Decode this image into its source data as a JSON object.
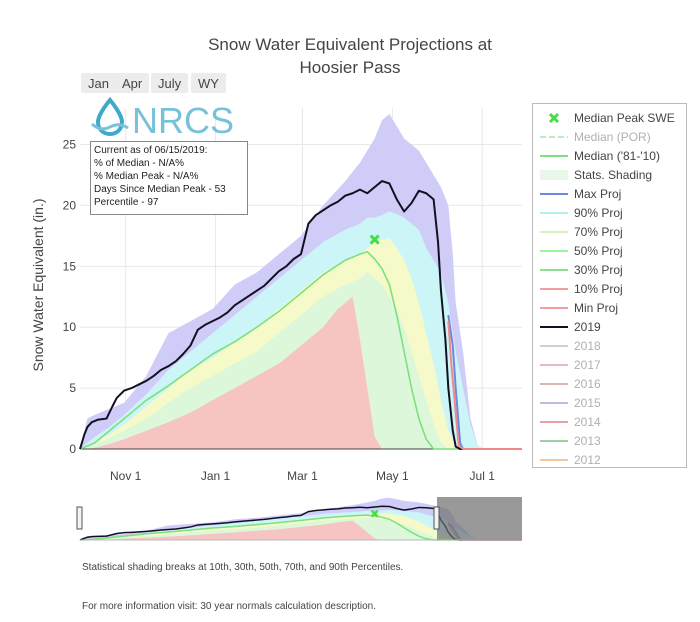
{
  "buttons": [
    "Jan",
    "Apr",
    "July",
    "WY"
  ],
  "info_box": {
    "lines": [
      "Current as of 06/15/2019:",
      "% of Median - N/A%",
      "% Median Peak - N/A%",
      "Days Since Median Peak - 53",
      "Percentile - 97"
    ]
  },
  "logo": {
    "text": "NRCS",
    "colors": {
      "drop": "#3fa9c9",
      "text": "#79c1d9"
    }
  },
  "footer": {
    "line1": "Statistical shading breaks at 10th, 30th, 50th, 70th, and 90th Percentiles.",
    "line2": "For more information visit: 30 year normals calculation description."
  },
  "legend": [
    {
      "label": "Median Peak SWE",
      "kind": "marker",
      "color": "#44dd44",
      "active": true
    },
    {
      "label": "Median (POR)",
      "kind": "dash",
      "color": "#b9f0b9",
      "active": false
    },
    {
      "label": "Median ('81-'10)",
      "kind": "line",
      "color": "#7ee07e",
      "active": true
    },
    {
      "label": "Stats. Shading",
      "kind": "fill",
      "color": "#e8f7e8",
      "active": true
    },
    {
      "label": "Max Proj",
      "kind": "line",
      "color": "#6f87e0",
      "active": true
    },
    {
      "label": "90% Proj",
      "kind": "line",
      "color": "#b3f0f0",
      "active": true
    },
    {
      "label": "70% Proj",
      "kind": "line",
      "color": "#d7f2c0",
      "active": true
    },
    {
      "label": "50% Proj",
      "kind": "line",
      "color": "#9ef29e",
      "active": true
    },
    {
      "label": "30% Proj",
      "kind": "line",
      "color": "#8ee08e",
      "active": true
    },
    {
      "label": "10% Proj",
      "kind": "line",
      "color": "#f0a0a0",
      "active": true
    },
    {
      "label": "Min Proj",
      "kind": "line",
      "color": "#eea0a0",
      "active": true
    },
    {
      "label": "2019",
      "kind": "line",
      "color": "#111122",
      "active": true
    },
    {
      "label": "2018",
      "kind": "line",
      "color": "#cfcfcf",
      "active": false
    },
    {
      "label": "2017",
      "kind": "line",
      "color": "#e8b8d0",
      "active": false
    },
    {
      "label": "2016",
      "kind": "line",
      "color": "#d8b8b0",
      "active": false
    },
    {
      "label": "2015",
      "kind": "line",
      "color": "#c8b8e0",
      "active": false
    },
    {
      "label": "2014",
      "kind": "line",
      "color": "#e8a0a0",
      "active": false
    },
    {
      "label": "2013",
      "kind": "line",
      "color": "#a0d0a0",
      "active": false
    },
    {
      "label": "2012",
      "kind": "line",
      "color": "#f4c89a",
      "active": false
    }
  ],
  "chart_data": {
    "type": "area",
    "title": "Snow Water Equivalent Projections at Hoosier Pass",
    "ylabel": "Snow Water Equivalent (in.)",
    "xlabel": "",
    "ylim": [
      0,
      28
    ],
    "yticks": [
      0,
      5,
      10,
      15,
      20,
      25
    ],
    "xlim": [
      0,
      300
    ],
    "xticks": [
      {
        "label": "Nov 1",
        "x": 31
      },
      {
        "label": "Jan 1",
        "x": 92
      },
      {
        "label": "Mar 1",
        "x": 151
      },
      {
        "label": "May 1",
        "x": 212
      },
      {
        "label": "Jul 1",
        "x": 273
      }
    ],
    "x_unit": "day of water year (Oct 1 = 0)",
    "median_peak_swe": {
      "x": 200,
      "y": 17.2
    },
    "bands": [
      {
        "name": "max",
        "color": "#cfcdf8",
        "x": [
          0,
          5,
          10,
          20,
          30,
          45,
          60,
          75,
          90,
          105,
          120,
          135,
          150,
          165,
          180,
          190,
          195,
          200,
          205,
          210,
          215,
          220,
          225,
          230,
          235,
          240,
          245,
          250,
          253,
          255,
          260,
          265,
          270,
          275,
          280,
          300
        ],
        "y": [
          0,
          2.5,
          2.8,
          3.3,
          3.8,
          6.0,
          9.5,
          10.5,
          11.5,
          13.5,
          14.5,
          16.0,
          17.5,
          20.0,
          22.0,
          23.5,
          24.5,
          25.5,
          27.0,
          27.5,
          26.5,
          25.5,
          25.0,
          24.5,
          23.5,
          22.5,
          21.5,
          20.0,
          16.0,
          12.0,
          8.0,
          2.5,
          0.3,
          0,
          0,
          0
        ]
      },
      {
        "name": "p90",
        "color": "#ccf5f8",
        "x": [
          0,
          5,
          10,
          20,
          30,
          45,
          60,
          75,
          90,
          105,
          120,
          135,
          150,
          165,
          180,
          190,
          195,
          200,
          205,
          210,
          215,
          220,
          225,
          230,
          235,
          240,
          245,
          250,
          255,
          260,
          265,
          270,
          275,
          300
        ],
        "y": [
          0,
          0.5,
          1.0,
          1.8,
          2.8,
          4.5,
          6.5,
          8.0,
          9.5,
          11.0,
          12.5,
          14.0,
          15.5,
          17.0,
          18.0,
          18.5,
          19.0,
          19.0,
          19.2,
          19.5,
          19.3,
          19.0,
          18.5,
          18.0,
          16.5,
          15.5,
          14.5,
          12.0,
          8.0,
          5.0,
          2.0,
          0.3,
          0,
          0
        ]
      },
      {
        "name": "p70",
        "color": "#f5fac8",
        "x": [
          0,
          5,
          10,
          20,
          30,
          45,
          60,
          75,
          90,
          105,
          120,
          135,
          150,
          165,
          180,
          190,
          195,
          200,
          205,
          210,
          215,
          220,
          225,
          230,
          235,
          240,
          245,
          250,
          255,
          260,
          265,
          300
        ],
        "y": [
          0,
          0.3,
          0.6,
          1.2,
          2.0,
          3.5,
          5.0,
          6.5,
          7.5,
          8.8,
          10.0,
          11.5,
          13.0,
          14.5,
          15.5,
          16.0,
          16.5,
          17.0,
          17.2,
          17.3,
          16.5,
          15.5,
          14.0,
          12.0,
          9.5,
          7.0,
          4.0,
          1.5,
          0.3,
          0,
          0,
          0
        ]
      },
      {
        "name": "p50",
        "color": "#dcf7da",
        "x": [
          0,
          5,
          10,
          20,
          30,
          45,
          60,
          75,
          90,
          105,
          120,
          135,
          150,
          165,
          180,
          190,
          195,
          200,
          205,
          210,
          215,
          220,
          225,
          230,
          235,
          240,
          245,
          250,
          300
        ],
        "y": [
          0,
          0.2,
          0.4,
          0.9,
          1.5,
          2.5,
          3.8,
          5.0,
          6.0,
          7.0,
          8.0,
          9.5,
          11.0,
          12.5,
          13.5,
          14.0,
          14.5,
          14.0,
          13.5,
          12.5,
          11.5,
          10.0,
          8.0,
          6.0,
          4.0,
          2.0,
          0.5,
          0,
          0
        ]
      },
      {
        "name": "p30",
        "color": "#f6c4c2",
        "x": [
          0,
          5,
          10,
          20,
          30,
          45,
          60,
          75,
          90,
          105,
          120,
          135,
          150,
          165,
          175,
          180,
          185,
          190,
          195,
          200,
          205,
          210,
          215,
          300
        ],
        "y": [
          0,
          0,
          0.1,
          0.4,
          0.8,
          1.5,
          2.2,
          3.0,
          4.0,
          5.0,
          6.0,
          7.0,
          8.5,
          10.0,
          11.5,
          12.0,
          12.5,
          9.0,
          5.0,
          1.0,
          0,
          0,
          0,
          0
        ]
      }
    ],
    "series": [
      {
        "name": "Median ('81-'10)",
        "color": "#7ee07e",
        "x": [
          0,
          10,
          20,
          30,
          45,
          60,
          75,
          90,
          105,
          120,
          135,
          150,
          165,
          180,
          190,
          195,
          200,
          205,
          210,
          215,
          220,
          225,
          230,
          235,
          240,
          245,
          250,
          300
        ],
        "y": [
          0,
          0.5,
          1.5,
          2.5,
          4.0,
          5.2,
          6.5,
          7.8,
          8.8,
          10.0,
          11.3,
          12.8,
          14.3,
          15.5,
          16.0,
          16.2,
          15.6,
          14.8,
          13.5,
          11.0,
          8.0,
          5.0,
          2.5,
          0.8,
          0,
          0,
          0,
          0
        ]
      },
      {
        "name": "2019",
        "color": "#111122",
        "x": [
          0,
          3,
          5,
          8,
          12,
          18,
          22,
          25,
          30,
          35,
          40,
          45,
          50,
          55,
          60,
          65,
          70,
          75,
          80,
          85,
          90,
          95,
          100,
          105,
          110,
          115,
          120,
          125,
          130,
          135,
          140,
          145,
          150,
          155,
          160,
          165,
          170,
          175,
          180,
          185,
          190,
          195,
          200,
          205,
          210,
          215,
          220,
          225,
          230,
          235,
          240,
          243,
          245,
          248,
          250,
          253,
          255,
          258,
          260,
          300
        ],
        "y": [
          0,
          1.2,
          1.8,
          2.2,
          2.4,
          2.5,
          3.5,
          4.2,
          4.8,
          5.0,
          5.3,
          5.6,
          6.0,
          6.5,
          6.8,
          7.2,
          7.8,
          8.5,
          9.8,
          10.2,
          10.5,
          10.8,
          11.2,
          11.8,
          12.2,
          12.6,
          13.0,
          13.4,
          14.0,
          14.6,
          15.0,
          15.6,
          16.0,
          18.5,
          19.2,
          19.6,
          20.0,
          20.3,
          20.8,
          21.0,
          21.3,
          21.0,
          21.5,
          22.0,
          21.8,
          20.5,
          19.5,
          20.2,
          21.2,
          21.0,
          20.5,
          17.0,
          13.0,
          9.0,
          5.0,
          1.5,
          0.2,
          0,
          0,
          0
        ]
      },
      {
        "name": "Max Proj",
        "color": "#6f87e0",
        "x": [
          250,
          253,
          255,
          258,
          260,
          300
        ],
        "y": [
          11.0,
          8.5,
          5.0,
          0.5,
          0,
          0
        ]
      },
      {
        "name": "10% Proj",
        "color": "#f08a8a",
        "x": [
          250,
          252,
          255,
          257,
          260,
          300
        ],
        "y": [
          10.5,
          7.0,
          3.0,
          0.3,
          0,
          0
        ]
      }
    ]
  }
}
